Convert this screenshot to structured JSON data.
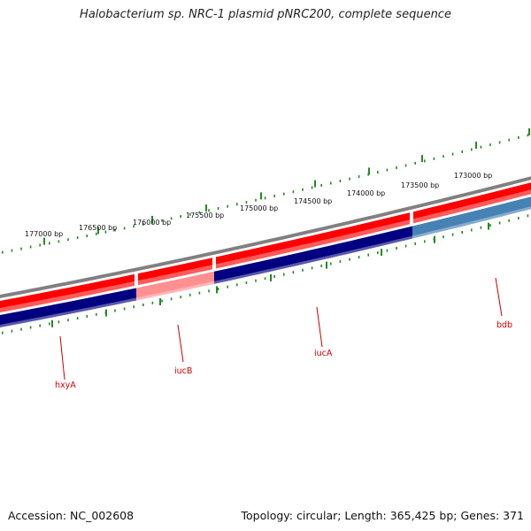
{
  "title": "Halobacterium sp. NRC-1 plasmid pNRC200, complete sequence",
  "footer": {
    "accession": "Accession: NC_002608",
    "summary": "Topology: circular; Length: 365,425 bp; Genes: 371"
  },
  "colors": {
    "backbone": "#808080",
    "forward_gene": "#ff0000",
    "forward_gene_light": "#ff8080",
    "reverse_gene_dark": "#000080",
    "reverse_gene_light": "#ff9090",
    "reverse_gene_blue": "#4682b4",
    "tick": "#228b22",
    "label": "#cc0000"
  },
  "ruler": {
    "labels": [
      "177000 bp",
      "176500 bp",
      "176000 bp",
      "175500 bp",
      "175000 bp",
      "174500 bp",
      "174000 bp",
      "173500 bp",
      "173000 bp"
    ]
  },
  "genes": [
    {
      "name": "hxyA"
    },
    {
      "name": "iucB"
    },
    {
      "name": "iucA"
    },
    {
      "name": "bdb"
    }
  ]
}
